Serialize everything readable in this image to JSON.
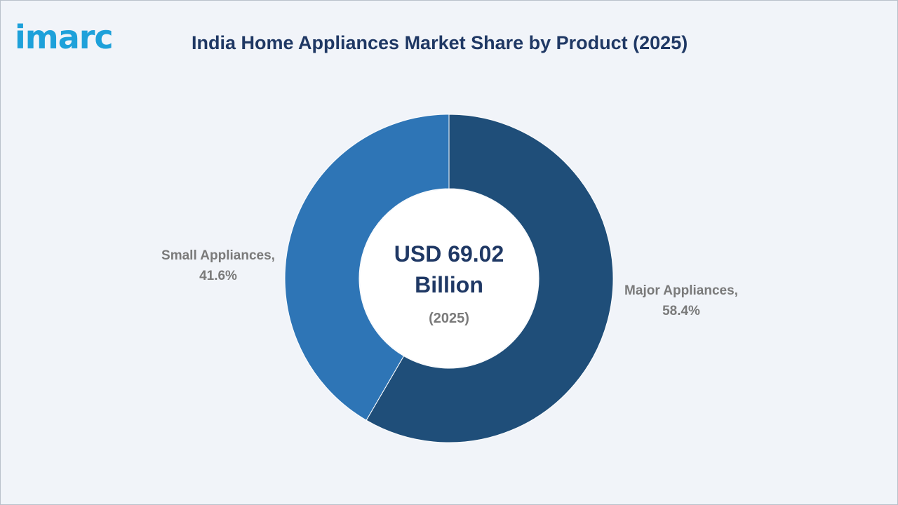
{
  "logo": {
    "text": "imarc",
    "color": "#1ea1da"
  },
  "colors": {
    "title": "#1f3864",
    "label": "#7a7a7a",
    "center_text": "#1f3864",
    "background": "#f1f4f9",
    "hole": "#ffffff"
  },
  "chart_data": {
    "type": "pie",
    "donut": true,
    "title": "India Home Appliances Market Share by Product (2025)",
    "center_label": {
      "line1": "USD 69.02",
      "line2": "Billion",
      "line3": "(2025)"
    },
    "slices": [
      {
        "name": "Major Appliances,",
        "value": 58.4,
        "display": "58.4%",
        "color": "#1f4e79"
      },
      {
        "name": "Small Appliances,",
        "value": 41.6,
        "display": "41.6%",
        "color": "#2e75b6"
      }
    ],
    "legend": "none"
  }
}
